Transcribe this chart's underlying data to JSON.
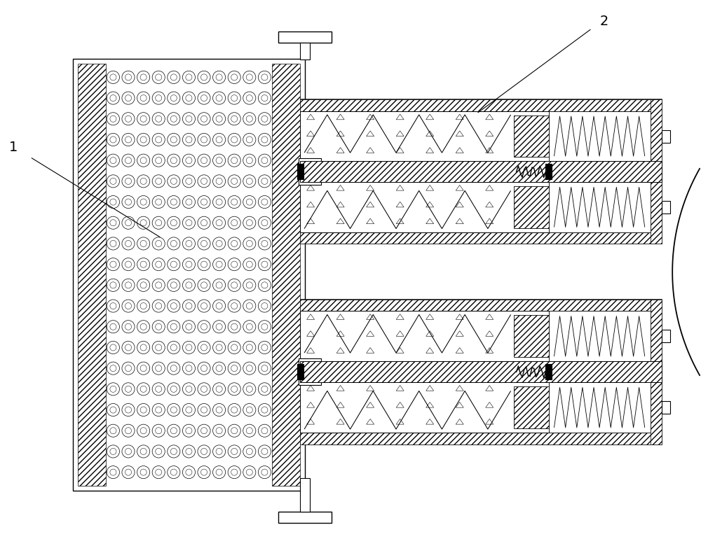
{
  "bg_color": "#ffffff",
  "line_color": "#000000",
  "label1": "1",
  "label2": "2",
  "fig_width": 10.0,
  "fig_height": 7.9
}
